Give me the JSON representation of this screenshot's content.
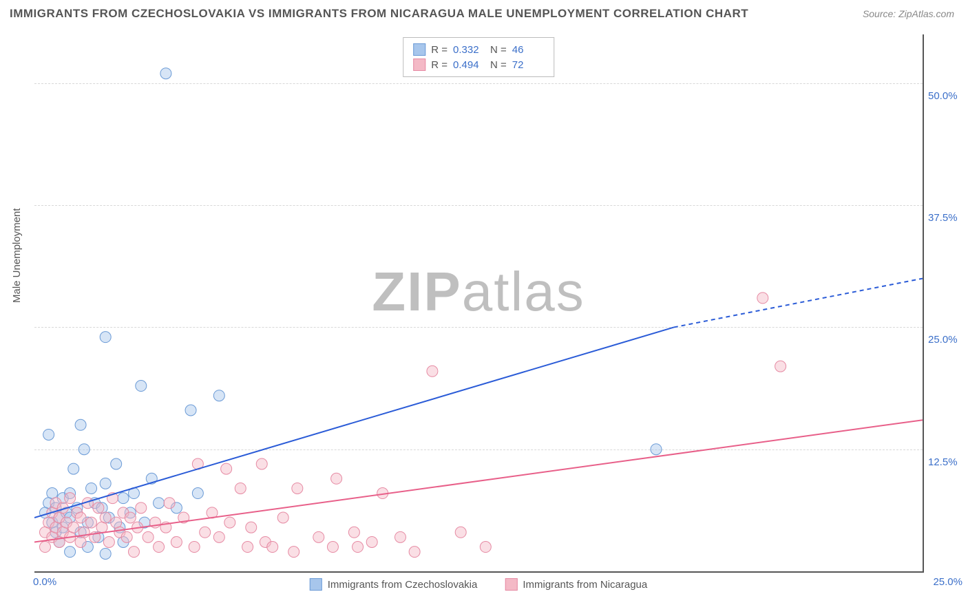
{
  "title": "IMMIGRANTS FROM CZECHOSLOVAKIA VS IMMIGRANTS FROM NICARAGUA MALE UNEMPLOYMENT CORRELATION CHART",
  "source": "Source: ZipAtlas.com",
  "watermark": {
    "z": "ZIP",
    "rest": "atlas"
  },
  "y_axis_label": "Male Unemployment",
  "chart": {
    "type": "scatter",
    "xlim": [
      0,
      25
    ],
    "ylim": [
      0,
      55
    ],
    "x_ticks": [
      {
        "value": 0,
        "label": "0.0%"
      },
      {
        "value": 25,
        "label": "25.0%"
      }
    ],
    "y_ticks": [
      {
        "value": 12.5,
        "label": "12.5%"
      },
      {
        "value": 25.0,
        "label": "25.0%"
      },
      {
        "value": 37.5,
        "label": "37.5%"
      },
      {
        "value": 50.0,
        "label": "50.0%"
      }
    ],
    "grid_color": "#d8d8d8",
    "background_color": "#ffffff",
    "marker_radius": 8,
    "marker_opacity": 0.45,
    "line_width": 2
  },
  "series": [
    {
      "id": "czech",
      "label": "Immigrants from Czechoslovakia",
      "color_fill": "#a7c6ec",
      "color_stroke": "#6a9ad6",
      "line_color": "#2a5bd7",
      "R": "0.332",
      "N": "46",
      "regression": {
        "x1": 0,
        "y1": 5.5,
        "x2": 18,
        "y2": 25.0,
        "x2_dash": 25,
        "y2_dash": 30.0
      },
      "points": [
        [
          0.3,
          6.0
        ],
        [
          0.4,
          7.0
        ],
        [
          0.5,
          5.0
        ],
        [
          0.5,
          8.0
        ],
        [
          0.6,
          4.0
        ],
        [
          0.6,
          6.5
        ],
        [
          0.7,
          3.0
        ],
        [
          0.7,
          5.5
        ],
        [
          0.8,
          7.5
        ],
        [
          0.8,
          4.5
        ],
        [
          0.9,
          6.0
        ],
        [
          1.0,
          8.0
        ],
        [
          1.0,
          5.5
        ],
        [
          1.1,
          10.5
        ],
        [
          1.2,
          6.5
        ],
        [
          1.3,
          4.0
        ],
        [
          1.3,
          15.0
        ],
        [
          1.4,
          12.5
        ],
        [
          1.5,
          5.0
        ],
        [
          1.6,
          8.5
        ],
        [
          1.7,
          7.0
        ],
        [
          1.8,
          3.5
        ],
        [
          1.9,
          6.5
        ],
        [
          2.0,
          9.0
        ],
        [
          2.0,
          24.0
        ],
        [
          2.1,
          5.5
        ],
        [
          2.3,
          11.0
        ],
        [
          2.4,
          4.5
        ],
        [
          2.5,
          7.5
        ],
        [
          2.7,
          6.0
        ],
        [
          2.8,
          8.0
        ],
        [
          3.0,
          19.0
        ],
        [
          3.1,
          5.0
        ],
        [
          3.3,
          9.5
        ],
        [
          3.5,
          7.0
        ],
        [
          3.7,
          51.0
        ],
        [
          4.0,
          6.5
        ],
        [
          4.4,
          16.5
        ],
        [
          4.6,
          8.0
        ],
        [
          5.2,
          18.0
        ],
        [
          1.0,
          2.0
        ],
        [
          1.5,
          2.5
        ],
        [
          2.0,
          1.8
        ],
        [
          2.5,
          3.0
        ],
        [
          0.4,
          14.0
        ],
        [
          17.5,
          12.5
        ]
      ]
    },
    {
      "id": "nicaragua",
      "label": "Immigrants from Nicaragua",
      "color_fill": "#f4b9c6",
      "color_stroke": "#e68aa3",
      "line_color": "#e85f89",
      "R": "0.494",
      "N": "72",
      "regression": {
        "x1": 0,
        "y1": 3.0,
        "x2": 25,
        "y2": 15.5,
        "x2_dash": 25,
        "y2_dash": 15.5
      },
      "points": [
        [
          0.3,
          4.0
        ],
        [
          0.4,
          5.0
        ],
        [
          0.5,
          3.5
        ],
        [
          0.5,
          6.0
        ],
        [
          0.6,
          4.5
        ],
        [
          0.6,
          7.0
        ],
        [
          0.7,
          3.0
        ],
        [
          0.7,
          5.5
        ],
        [
          0.8,
          4.0
        ],
        [
          0.8,
          6.5
        ],
        [
          0.9,
          5.0
        ],
        [
          1.0,
          3.5
        ],
        [
          1.0,
          7.5
        ],
        [
          1.1,
          4.5
        ],
        [
          1.2,
          6.0
        ],
        [
          1.3,
          3.0
        ],
        [
          1.3,
          5.5
        ],
        [
          1.4,
          4.0
        ],
        [
          1.5,
          7.0
        ],
        [
          1.6,
          5.0
        ],
        [
          1.7,
          3.5
        ],
        [
          1.8,
          6.5
        ],
        [
          1.9,
          4.5
        ],
        [
          2.0,
          5.5
        ],
        [
          2.1,
          3.0
        ],
        [
          2.2,
          7.5
        ],
        [
          2.3,
          5.0
        ],
        [
          2.4,
          4.0
        ],
        [
          2.5,
          6.0
        ],
        [
          2.6,
          3.5
        ],
        [
          2.7,
          5.5
        ],
        [
          2.8,
          2.0
        ],
        [
          2.9,
          4.5
        ],
        [
          3.0,
          6.5
        ],
        [
          3.2,
          3.5
        ],
        [
          3.4,
          5.0
        ],
        [
          3.5,
          2.5
        ],
        [
          3.7,
          4.5
        ],
        [
          3.8,
          7.0
        ],
        [
          4.0,
          3.0
        ],
        [
          4.2,
          5.5
        ],
        [
          4.5,
          2.5
        ],
        [
          4.6,
          11.0
        ],
        [
          4.8,
          4.0
        ],
        [
          5.0,
          6.0
        ],
        [
          5.2,
          3.5
        ],
        [
          5.4,
          10.5
        ],
        [
          5.5,
          5.0
        ],
        [
          5.8,
          8.5
        ],
        [
          6.0,
          2.5
        ],
        [
          6.1,
          4.5
        ],
        [
          6.4,
          11.0
        ],
        [
          6.5,
          3.0
        ],
        [
          6.7,
          2.5
        ],
        [
          7.0,
          5.5
        ],
        [
          7.3,
          2.0
        ],
        [
          7.4,
          8.5
        ],
        [
          8.0,
          3.5
        ],
        [
          8.4,
          2.5
        ],
        [
          8.5,
          9.5
        ],
        [
          9.0,
          4.0
        ],
        [
          9.1,
          2.5
        ],
        [
          9.5,
          3.0
        ],
        [
          10.3,
          3.5
        ],
        [
          10.7,
          2.0
        ],
        [
          11.2,
          20.5
        ],
        [
          12.0,
          4.0
        ],
        [
          12.7,
          2.5
        ],
        [
          20.5,
          28.0
        ],
        [
          21.0,
          21.0
        ],
        [
          0.3,
          2.5
        ],
        [
          9.8,
          8.0
        ]
      ]
    }
  ],
  "legend_top": {
    "R_label": "R =",
    "N_label": "N ="
  },
  "legend_bottom": [
    {
      "series": 0
    },
    {
      "series": 1
    }
  ]
}
